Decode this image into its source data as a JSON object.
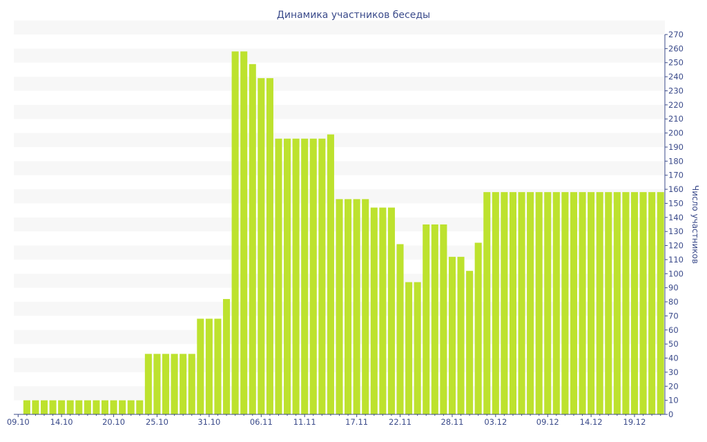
{
  "chart_data": {
    "type": "bar",
    "title": "Динамика участников беседы",
    "xlabel": "",
    "ylabel": "Число участников",
    "ylim": [
      0,
      270
    ],
    "y_tick_step": 10,
    "grid": true,
    "bar_color": "#bde22e",
    "stripe_color": "#f7f7f7",
    "text_color": "#3a4a8a",
    "categories": [
      "09.10",
      "10.10",
      "11.10",
      "12.10",
      "13.10",
      "14.10",
      "15.10",
      "16.10",
      "17.10",
      "18.10",
      "19.10",
      "20.10",
      "21.10",
      "22.10",
      "23.10",
      "24.10",
      "25.10",
      "26.10",
      "27.10",
      "28.10",
      "29.10",
      "30.10",
      "31.10",
      "01.11",
      "02.11",
      "03.11",
      "04.11",
      "05.11",
      "06.11",
      "07.11",
      "08.11",
      "09.11",
      "10.11",
      "11.11",
      "12.11",
      "13.11",
      "14.11",
      "15.11",
      "16.11",
      "17.11",
      "18.11",
      "19.11",
      "20.11",
      "21.11",
      "22.11",
      "23.11",
      "24.11",
      "25.11",
      "26.11",
      "27.11",
      "28.11",
      "29.11",
      "30.11",
      "01.12",
      "02.12",
      "03.12",
      "04.12",
      "05.12",
      "06.12",
      "07.12",
      "08.12",
      "09.12",
      "10.12",
      "11.12",
      "12.12",
      "13.12",
      "14.12",
      "15.12",
      "16.12",
      "17.12",
      "18.12",
      "19.12",
      "20.12",
      "21.12",
      "22.12"
    ],
    "x_tick_labels": [
      "09.10",
      "14.10",
      "20.10",
      "25.10",
      "31.10",
      "06.11",
      "11.11",
      "17.11",
      "22.11",
      "28.11",
      "03.12",
      "09.12",
      "14.12",
      "19.12"
    ],
    "values": [
      0,
      10,
      10,
      10,
      10,
      10,
      10,
      10,
      10,
      10,
      10,
      10,
      10,
      10,
      10,
      43,
      43,
      43,
      43,
      43,
      43,
      68,
      68,
      68,
      82,
      258,
      258,
      249,
      239,
      239,
      196,
      196,
      196,
      196,
      196,
      196,
      199,
      153,
      153,
      153,
      153,
      147,
      147,
      147,
      121,
      94,
      94,
      135,
      135,
      135,
      112,
      112,
      102,
      122,
      158,
      158,
      158,
      158,
      158,
      158,
      158,
      158,
      158,
      158,
      158,
      158,
      158,
      158,
      158,
      158,
      158,
      158,
      158,
      158,
      158
    ]
  }
}
